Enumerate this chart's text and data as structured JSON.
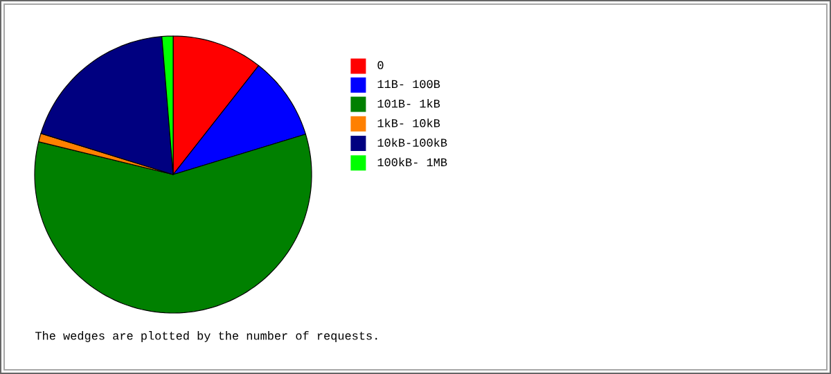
{
  "chart_data": {
    "type": "pie",
    "categories": [
      "0",
      "11B- 100B",
      "101B- 1kB",
      "1kB- 10kB",
      "10kB-100kB",
      "100kB- 1MB"
    ],
    "values": [
      10.6,
      9.7,
      58.5,
      1.0,
      18.9,
      1.3
    ],
    "colors": [
      "#ff0000",
      "#0000ff",
      "#008000",
      "#ff8000",
      "#000080",
      "#00ff00"
    ],
    "legend": "right",
    "annotations": [
      "The wedges are plotted by the number of requests."
    ]
  }
}
